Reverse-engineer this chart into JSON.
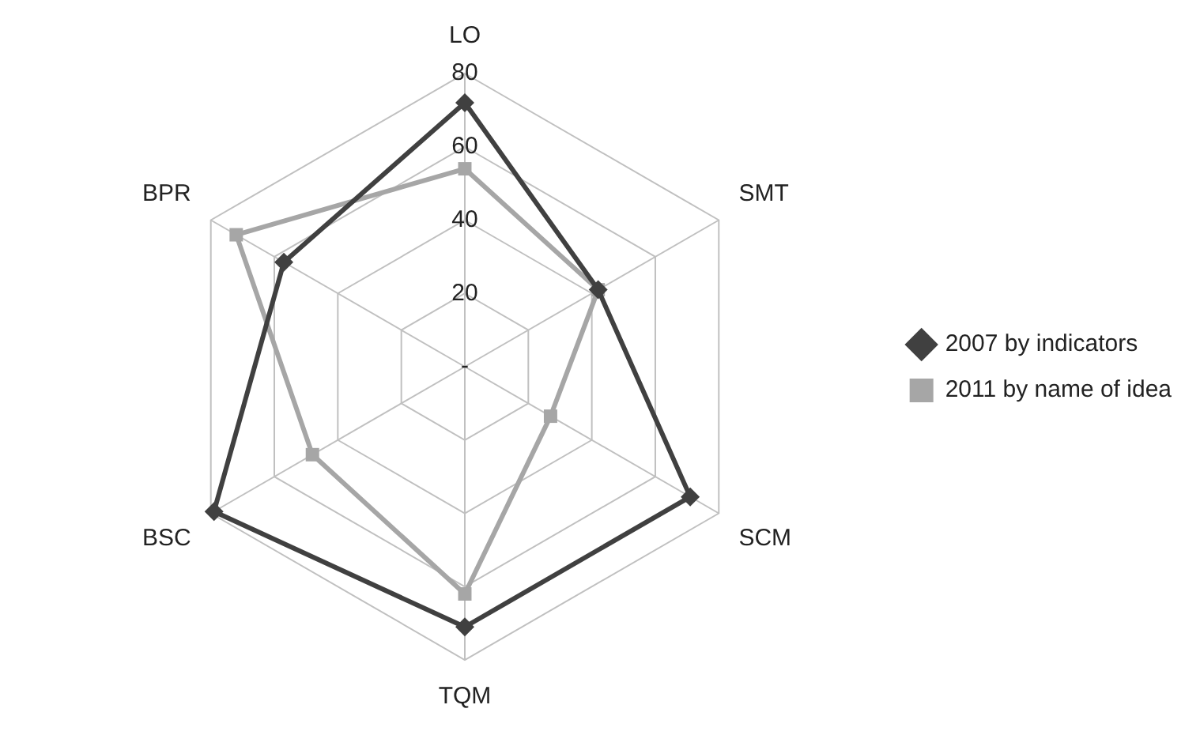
{
  "chart_data": {
    "type": "radar",
    "categories": [
      "LO",
      "SMT",
      "SCM",
      "TQM",
      "BSC",
      "BPR"
    ],
    "series": [
      {
        "name": "2007 by indicators",
        "color": "#404040",
        "marker": "diamond",
        "values": [
          72,
          42,
          71,
          71,
          79,
          57
        ]
      },
      {
        "name": "2011 by name of idea",
        "color": "#a6a6a6",
        "marker": "square",
        "values": [
          54,
          42,
          27,
          62,
          48,
          72
        ]
      }
    ],
    "ylim": [
      0,
      80
    ],
    "yticks": [
      {
        "value": 0,
        "label": "-"
      },
      20,
      40,
      60,
      80
    ],
    "grid": true,
    "legend": "right"
  }
}
